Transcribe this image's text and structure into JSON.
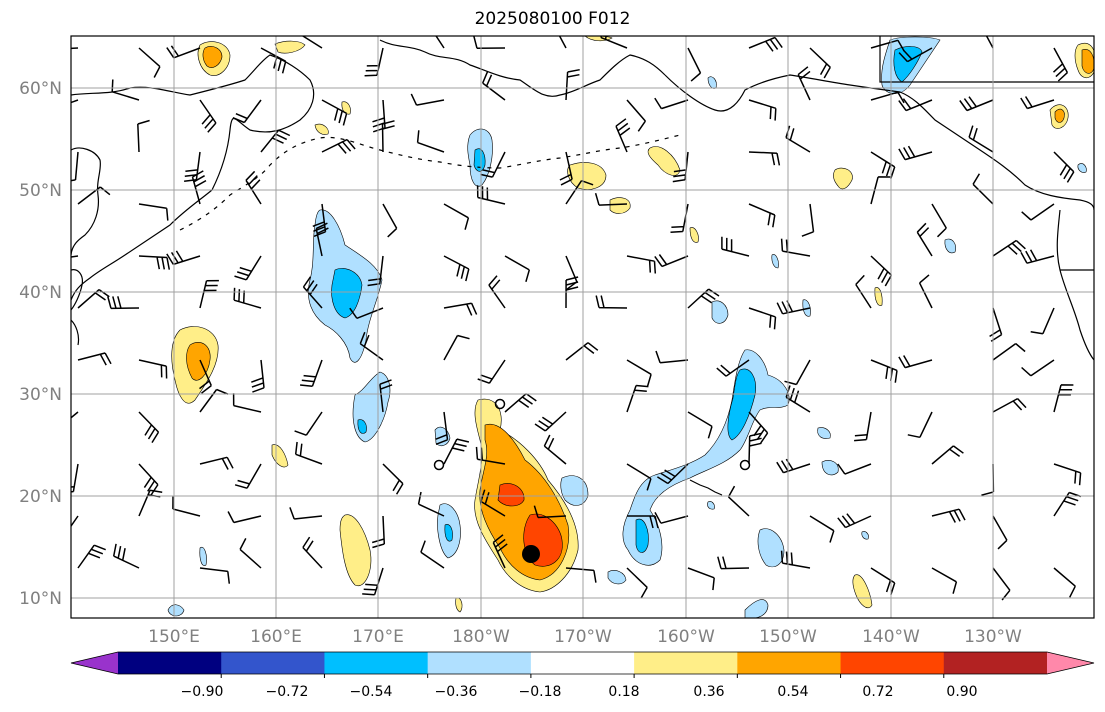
{
  "title": "2025080100 F012",
  "lat_labels": [
    "60°N",
    "50°N",
    "40°N",
    "30°N",
    "20°N",
    "10°N"
  ],
  "lon_labels": [
    "150°E",
    "160°E",
    "170°E",
    "180°W",
    "170°W",
    "160°W",
    "150°W",
    "140°W",
    "130°W"
  ],
  "colorbar": {
    "colors": [
      "#9933cc",
      "#000080",
      "#3355cc",
      "#00bfff",
      "#b0e0ff",
      "#ffffff",
      "#ffee88",
      "#ffa500",
      "#ff4500",
      "#b22222",
      "#ff88aa"
    ],
    "labels": [
      "−0.90",
      "−0.72",
      "−0.54",
      "−0.36",
      "−0.18",
      "0.18",
      "0.36",
      "0.54",
      "0.72",
      "0.90"
    ]
  },
  "field_colors": {
    "pos1": "#ffee88",
    "pos2": "#ffa500",
    "pos3": "#ff4500",
    "neg1": "#b0e0ff",
    "neg2": "#00bfff"
  }
}
